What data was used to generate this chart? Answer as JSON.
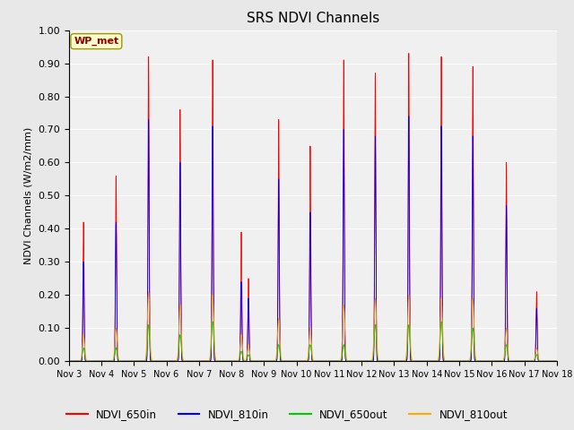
{
  "title": "SRS NDVI Channels",
  "ylabel": "NDVI Channels (W/m2/mm)",
  "xlabel": "",
  "ylim": [
    0.0,
    1.0
  ],
  "background_color": "#e8e8e8",
  "plot_bg_color": "#e8e8e8",
  "colors": {
    "NDVI_650in": "#ff0000",
    "NDVI_810in": "#0000ff",
    "NDVI_650out": "#00cc00",
    "NDVI_810out": "#ffaa00"
  },
  "legend_label": "WP_met",
  "xtick_labels": [
    "Nov 3",
    "Nov 4",
    "Nov 5",
    "Nov 6",
    "Nov 7",
    "Nov 8",
    "Nov 9",
    "Nov 10",
    "Nov 11",
    "Nov 12",
    "Nov 13",
    "Nov 14",
    "Nov 15",
    "Nov 16",
    "Nov 17",
    "Nov 18"
  ],
  "ytick_values": [
    0.0,
    0.1,
    0.2,
    0.3,
    0.4,
    0.5,
    0.6,
    0.7,
    0.8,
    0.9,
    1.0
  ],
  "peaks": [
    [
      0.45,
      0.42,
      0.3,
      0.04,
      0.08
    ],
    [
      1.45,
      0.56,
      0.42,
      0.04,
      0.1
    ],
    [
      2.45,
      0.92,
      0.73,
      0.11,
      0.21
    ],
    [
      3.42,
      0.76,
      0.6,
      0.08,
      0.17
    ],
    [
      4.42,
      0.91,
      0.71,
      0.12,
      0.2
    ],
    [
      5.3,
      0.39,
      0.24,
      0.03,
      0.08
    ],
    [
      5.52,
      0.25,
      0.19,
      0.02,
      0.05
    ],
    [
      6.45,
      0.73,
      0.55,
      0.05,
      0.13
    ],
    [
      7.42,
      0.65,
      0.45,
      0.05,
      0.1
    ],
    [
      8.45,
      0.91,
      0.7,
      0.05,
      0.17
    ],
    [
      9.42,
      0.87,
      0.68,
      0.11,
      0.19
    ],
    [
      10.45,
      0.93,
      0.74,
      0.11,
      0.2
    ],
    [
      11.45,
      0.92,
      0.71,
      0.12,
      0.19
    ],
    [
      12.42,
      0.89,
      0.68,
      0.1,
      0.19
    ],
    [
      13.45,
      0.6,
      0.47,
      0.05,
      0.1
    ],
    [
      14.38,
      0.21,
      0.16,
      0.02,
      0.04
    ]
  ]
}
